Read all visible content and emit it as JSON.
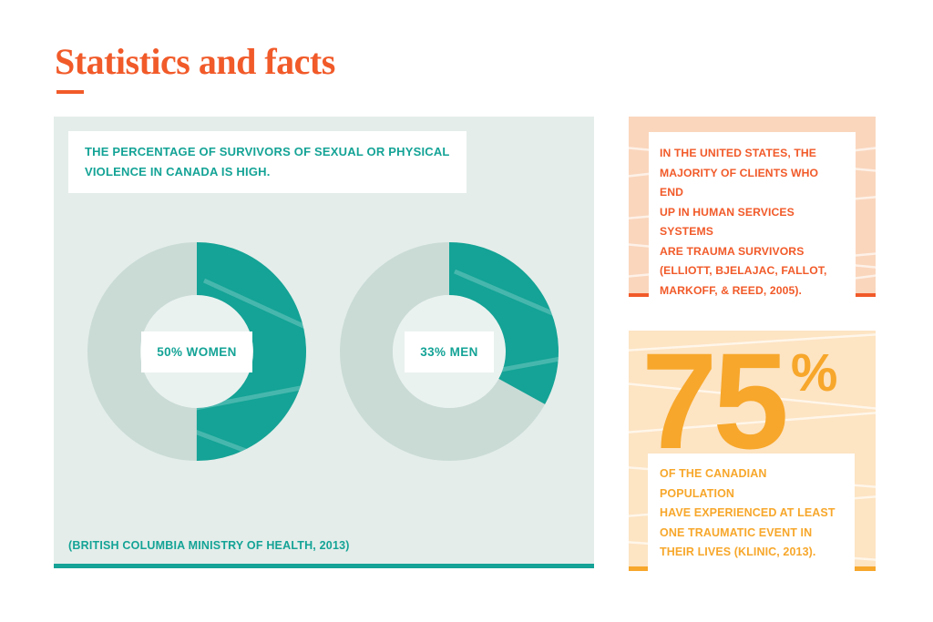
{
  "header": {
    "title": "Statistics and facts",
    "accent_color": "#F15A29"
  },
  "colors": {
    "teal": "#14A396",
    "teal_track": "#CADBD6",
    "panel_bg": "#E4EDEA",
    "donut_hole": "#EAF2F0",
    "orange_red": "#F15A29",
    "peach_light": "#FAD6BD",
    "amber": "#F7A72B",
    "peach_lighter": "#FDE4C3",
    "white": "#FFFFFF"
  },
  "main_panel": {
    "heading": "THE PERCENTAGE OF SURVIVORS OF SEXUAL OR PHYSICAL\nVIOLENCE IN CANADA IS HIGH.",
    "citation": "(BRITISH COLUMBIA MINISTRY OF HEALTH, 2013)"
  },
  "chart_data": {
    "type": "pie",
    "variant": "donut",
    "title": "THE PERCENTAGE OF SURVIVORS OF SEXUAL OR PHYSICAL VIOLENCE IN CANADA IS HIGH.",
    "source": "(BRITISH COLUMBIA MINISTRY OF HEALTH, 2013)",
    "filled_color": "#14A396",
    "track_color": "#CADBD6",
    "start_angle_deg": 0,
    "direction": "clockwise",
    "legend_position": "center-labels",
    "segments": [
      {
        "label": "50% WOMEN",
        "group": "Women",
        "value_pct": 50
      },
      {
        "label": "33% MEN",
        "group": "Men",
        "value_pct": 33
      }
    ]
  },
  "fact_box": {
    "text": "IN THE UNITED STATES, THE\nMAJORITY OF CLIENTS WHO END\nUP IN HUMAN SERVICES SYSTEMS\nARE TRAUMA SURVIVORS\n(ELLIOTT, BJELAJAC, FALLOT,\nMARKOFF, & REED, 2005)."
  },
  "stat_box": {
    "big_number": "75",
    "percent_sign": "%",
    "text": "OF THE CANADIAN POPULATION\nHAVE EXPERIENCED AT LEAST\nONE TRAUMATIC EVENT IN\nTHEIR LIVES (KLINIC, 2013)."
  }
}
